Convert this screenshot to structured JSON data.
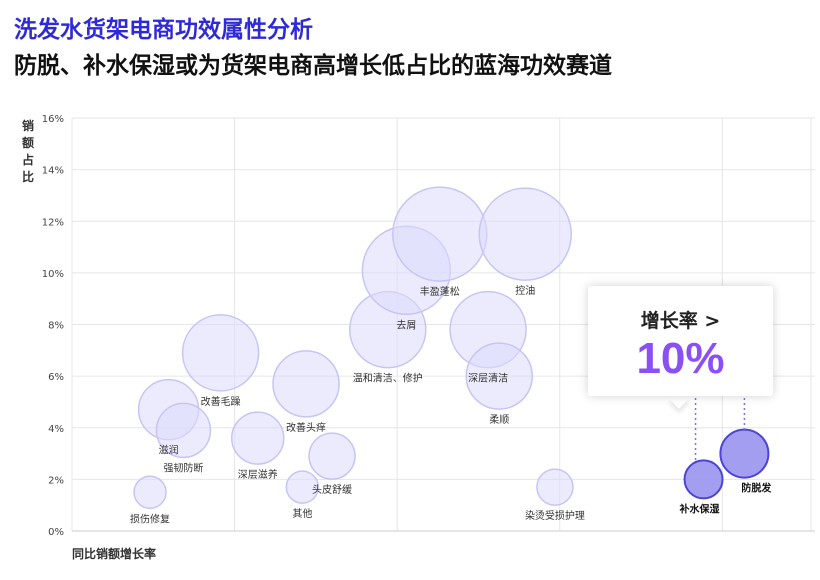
{
  "header": {
    "title": "洗发水货架电商功效属性分析",
    "subtitle": "防脱、补水保湿或为货架电商高增长低占比的蓝海功效赛道"
  },
  "callout": {
    "label": "增长率 >",
    "value": "10%"
  },
  "colors": {
    "title": "#2f2ad8",
    "bubble_fill": "#dcdbfb",
    "bubble_stroke": "#c7c5f5",
    "highlight_fill": "#9a93f0",
    "highlight_stroke": "#4b45d6",
    "callout_value": "#8a4ff5"
  },
  "chart_data": {
    "type": "scatter",
    "xlabel": "同比销额增长率",
    "ylabel": "销额占比",
    "ylim": [
      0,
      16
    ],
    "yticks": [
      "0%",
      "2%",
      "4%",
      "6%",
      "8%",
      "10%",
      "12%",
      "14%",
      "16%"
    ],
    "x_gridlines": 4,
    "grid": true,
    "points": [
      {
        "label": "损伤修复",
        "x": -3.9,
        "y": 1.5,
        "size": 16,
        "highlight": false
      },
      {
        "label": "滋润",
        "x": -3.4,
        "y": 4.7,
        "size": 30,
        "highlight": false
      },
      {
        "label": "强韧防断",
        "x": -3.0,
        "y": 3.9,
        "size": 27,
        "highlight": false
      },
      {
        "label": "改善毛躁",
        "x": -2.0,
        "y": 6.9,
        "size": 38,
        "highlight": false
      },
      {
        "label": "深层滋养",
        "x": -1.0,
        "y": 3.6,
        "size": 26,
        "highlight": false
      },
      {
        "label": "改善头痒",
        "x": 0.3,
        "y": 5.7,
        "size": 33,
        "highlight": false
      },
      {
        "label": "其他",
        "x": 0.2,
        "y": 1.7,
        "size": 16,
        "highlight": false
      },
      {
        "label": "头皮舒缓",
        "x": 1.0,
        "y": 2.9,
        "size": 23,
        "highlight": false
      },
      {
        "label": "温和清洁、修护",
        "x": 2.5,
        "y": 7.8,
        "size": 38,
        "highlight": false
      },
      {
        "label": "去屑",
        "x": 3.0,
        "y": 10.1,
        "size": 44,
        "highlight": false
      },
      {
        "label": "丰盈蓬松",
        "x": 3.9,
        "y": 11.5,
        "size": 47,
        "highlight": false
      },
      {
        "label": "深层清洁",
        "x": 5.2,
        "y": 7.8,
        "size": 38,
        "highlight": false
      },
      {
        "label": "控油",
        "x": 6.2,
        "y": 11.5,
        "size": 46,
        "highlight": false
      },
      {
        "label": "柔顺",
        "x": 5.5,
        "y": 6.0,
        "size": 33,
        "highlight": false
      },
      {
        "label": "染烫受损护理",
        "x": 7.0,
        "y": 1.7,
        "size": 18,
        "highlight": false
      },
      {
        "label": "补水保湿",
        "x": 11.0,
        "y": 2.0,
        "size": 19,
        "highlight": true
      },
      {
        "label": "防脱发",
        "x": 12.1,
        "y": 3.0,
        "size": 24,
        "highlight": true
      }
    ]
  }
}
